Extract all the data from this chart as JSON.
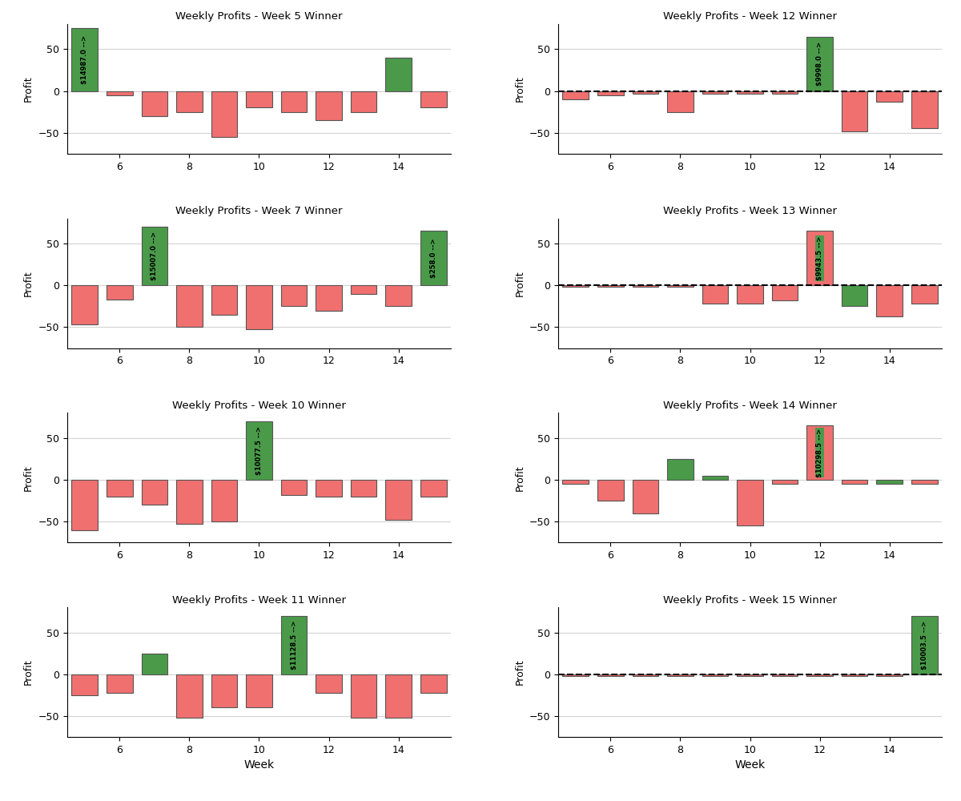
{
  "subplots": [
    {
      "title": "Weekly Profits - Week 5 Winner",
      "profits": [
        75,
        -5,
        -30,
        -25,
        -55,
        -20,
        -25,
        -35,
        -25,
        40,
        -20
      ],
      "green_weeks": [
        5,
        14
      ],
      "annotation": "$14987.0 -->",
      "ann_idx": 0,
      "dashed": false
    },
    {
      "title": "Weekly Profits - Week 12 Winner",
      "profits": [
        -10,
        -5,
        -3,
        -25,
        -3,
        -3,
        -3,
        65,
        -48,
        -13,
        -45
      ],
      "green_weeks": [
        12
      ],
      "annotation": "$9998.0 -->",
      "ann_idx": 7,
      "dashed": true
    },
    {
      "title": "Weekly Profits - Week 7 Winner",
      "profits": [
        -47,
        -17,
        70,
        -50,
        -35,
        -52,
        -25,
        -30,
        -10,
        -25,
        65
      ],
      "green_weeks": [
        7,
        15
      ],
      "annotation": "$15007.0 -->",
      "ann_idx": 2,
      "extra_ann_idx": 10,
      "extra_ann_text": "$258.0 -->",
      "dashed": false
    },
    {
      "title": "Weekly Profits - Week 13 Winner",
      "profits": [
        -2,
        -2,
        -2,
        -2,
        -22,
        -22,
        -18,
        65,
        -25,
        -37,
        -22
      ],
      "green_weeks": [
        13
      ],
      "annotation": "$9943.5 -->",
      "ann_idx": 7,
      "dashed": true
    },
    {
      "title": "Weekly Profits - Week 10 Winner",
      "profits": [
        -60,
        -20,
        -30,
        -53,
        -50,
        70,
        -18,
        -20,
        -20,
        -48,
        -20
      ],
      "green_weeks": [
        10
      ],
      "annotation": "$10077.5 -->",
      "ann_idx": 5,
      "dashed": false
    },
    {
      "title": "Weekly Profits - Week 14 Winner",
      "profits": [
        -5,
        -25,
        -40,
        25,
        5,
        -55,
        -5,
        65,
        -5,
        -5,
        -5
      ],
      "green_weeks": [
        14,
        8,
        9
      ],
      "annotation": "$10298.5 -->",
      "ann_idx": 7,
      "dashed": false
    },
    {
      "title": "Weekly Profits - Week 11 Winner",
      "profits": [
        -25,
        -22,
        25,
        -52,
        -40,
        -40,
        70,
        -22,
        -52,
        -52,
        -22
      ],
      "green_weeks": [
        11,
        7
      ],
      "annotation": "$11128.5 -->",
      "ann_idx": 6,
      "dashed": false
    },
    {
      "title": "Weekly Profits - Week 15 Winner",
      "profits": [
        -2,
        -2,
        -2,
        -2,
        -2,
        -2,
        -2,
        -2,
        -2,
        -2,
        70
      ],
      "green_weeks": [
        15
      ],
      "annotation": "$10003.5 -->",
      "ann_idx": 10,
      "dashed": true
    }
  ],
  "weeks": [
    5,
    6,
    7,
    8,
    9,
    10,
    11,
    12,
    13,
    14,
    15
  ],
  "green_color": "#4a9a4a",
  "red_color": "#f07070",
  "bar_edgecolor": "#555555",
  "xlabel": "Week",
  "ylabel": "Profit",
  "ylim": [
    -75,
    80
  ]
}
